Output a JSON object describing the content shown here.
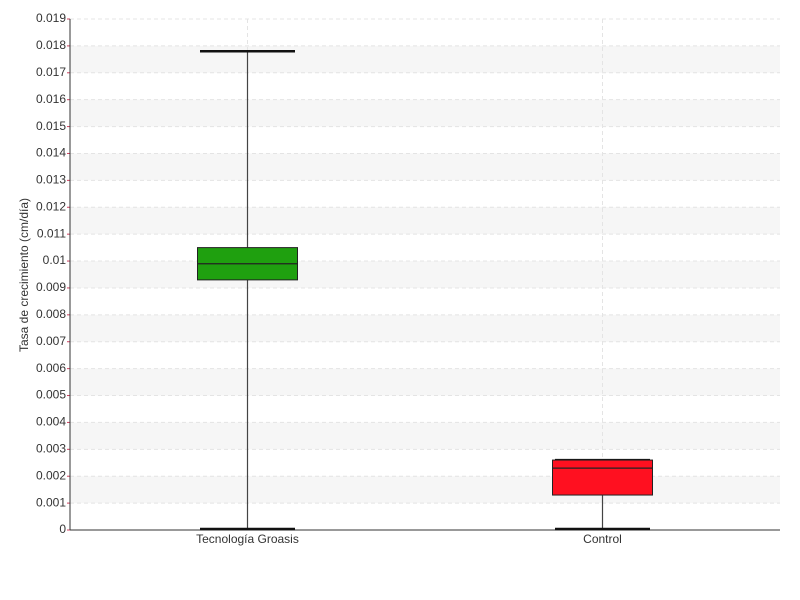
{
  "chart_data": {
    "type": "box",
    "y_label": "Tasa de crecimiento (cm/día)",
    "categories": [
      "Tecnología Groasis",
      "Control"
    ],
    "boxes": [
      {
        "min": 0,
        "q1": 0.0093,
        "median": 0.0099,
        "q3": 0.0105,
        "max": 0.0178,
        "color": "#1fa00f"
      },
      {
        "min": 0,
        "q1": 0.0013,
        "median": 0.0023,
        "q3": 0.0026,
        "max": 0.0026,
        "color": "#ff1020"
      }
    ],
    "ylim": [
      0,
      0.019
    ],
    "yticks": [
      0,
      0.001,
      0.002,
      0.003,
      0.004,
      0.005,
      0.006,
      0.007,
      0.008,
      0.009,
      0.01,
      0.011,
      0.012,
      0.013,
      0.014,
      0.015,
      0.016,
      0.017,
      0.018,
      0.019
    ],
    "grid": true
  }
}
